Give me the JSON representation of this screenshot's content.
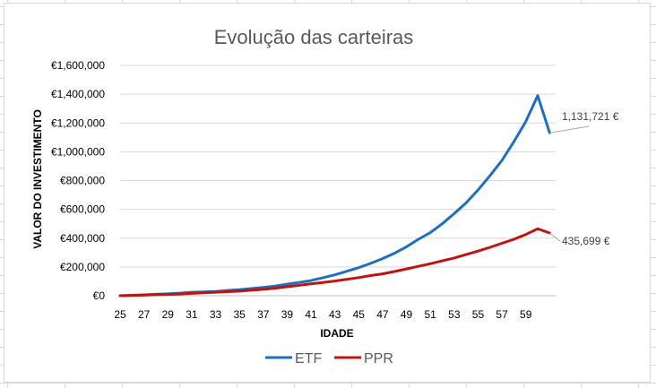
{
  "chart_data": {
    "type": "line",
    "title": "Evolução das carteiras",
    "xlabel": "IDADE",
    "ylabel": "VALOR DO INVESTIMENTO",
    "ylim": [
      0,
      1600000
    ],
    "y_ticks": [
      0,
      200000,
      400000,
      600000,
      800000,
      1000000,
      1200000,
      1400000,
      1600000
    ],
    "y_tick_labels": [
      "€0",
      "€200,000",
      "€400,000",
      "€600,000",
      "€800,000",
      "€1,000,000",
      "€1,200,000",
      "€1,400,000",
      "€1,600,000"
    ],
    "x": [
      25,
      26,
      27,
      28,
      29,
      30,
      31,
      32,
      33,
      34,
      35,
      36,
      37,
      38,
      39,
      40,
      41,
      42,
      43,
      44,
      45,
      46,
      47,
      48,
      49,
      50,
      51,
      52,
      53,
      54,
      55,
      56,
      57,
      58,
      59,
      60,
      61
    ],
    "x_tick_labels": [
      "25",
      "27",
      "29",
      "31",
      "33",
      "35",
      "37",
      "39",
      "41",
      "43",
      "45",
      "47",
      "49",
      "51",
      "53",
      "55",
      "57",
      "59"
    ],
    "series": [
      {
        "name": "ETF",
        "color": "#1f6fc0",
        "values": [
          0,
          3000,
          6000,
          10000,
          13000,
          18000,
          24000,
          26000,
          30000,
          36000,
          42000,
          50000,
          58000,
          67000,
          80000,
          92000,
          105000,
          125000,
          145000,
          170000,
          195000,
          225000,
          258000,
          295000,
          340000,
          392000,
          438000,
          500000,
          570000,
          645000,
          735000,
          835000,
          940000,
          1070000,
          1210000,
          1390000,
          1131721
        ],
        "end_label": "1,131,721 €"
      },
      {
        "name": "PPR",
        "color": "#c0140f",
        "values": [
          0,
          2000,
          4000,
          7000,
          9000,
          12000,
          16000,
          20000,
          24000,
          28000,
          32000,
          38000,
          44000,
          52000,
          62000,
          72000,
          82000,
          92000,
          102000,
          114000,
          126000,
          140000,
          152000,
          168000,
          186000,
          204000,
          222000,
          242000,
          262000,
          286000,
          310000,
          336000,
          364000,
          392000,
          425000,
          465000,
          435699
        ],
        "end_label": "435,699 €"
      }
    ],
    "legend_position": "bottom",
    "grid": true
  }
}
